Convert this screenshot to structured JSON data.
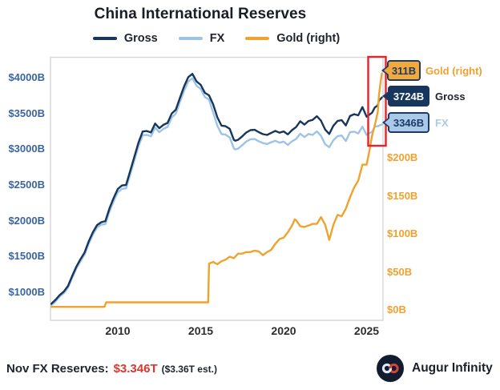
{
  "title": "China International Reserves",
  "legend": [
    {
      "label": "Gross",
      "color": "#17365d"
    },
    {
      "label": "FX",
      "color": "#9dc3e6"
    },
    {
      "label": "Gold (right)",
      "color": "#f0a22e"
    }
  ],
  "badges": {
    "gold": {
      "value": "311B",
      "label": "Gold (right)"
    },
    "gross": {
      "value": "3724B",
      "label": "Gross"
    },
    "fx": {
      "value": "3346B",
      "label": "FX"
    }
  },
  "footer": {
    "prefix": "Nov FX Reserves:",
    "value": "$3.346T",
    "estimate": "($3.36T est.)",
    "brand": "Augur Infinity"
  },
  "colors": {
    "gross": "#17365d",
    "fx": "#9dc3e6",
    "gold": "#f0a22e",
    "highlight_red": "#e1252b",
    "left_axis_text": "#3a64a0",
    "right_axis_text": "#f0a22e",
    "plot_border": "#d9d9d9",
    "footer_value_red": "#e0342c"
  },
  "chart_data": {
    "type": "line",
    "title": "China International Reserves",
    "grid": false,
    "legend_position": "top",
    "x_axis": {
      "min": 2005.9,
      "max": 2025.95,
      "ticks": [
        {
          "v": 2010,
          "label": "2010"
        },
        {
          "v": 2015,
          "label": "2015"
        },
        {
          "v": 2020,
          "label": "2020"
        },
        {
          "v": 2025,
          "label": "2025"
        }
      ]
    },
    "left_axis": {
      "unit": "USD billions",
      "ticks": [
        {
          "v": 4000,
          "label": "$4000B"
        },
        {
          "v": 3500,
          "label": "$3500B"
        },
        {
          "v": 3000,
          "label": "$3000B"
        },
        {
          "v": 2500,
          "label": "$2500B"
        },
        {
          "v": 2000,
          "label": "$2000B"
        },
        {
          "v": 1500,
          "label": "$1500B"
        },
        {
          "v": 1000,
          "label": "$1000B"
        }
      ]
    },
    "right_axis": {
      "unit": "USD billions",
      "ticks": [
        {
          "v": 200,
          "label": "$200B"
        },
        {
          "v": 150,
          "label": "$150B"
        },
        {
          "v": 100,
          "label": "$100B"
        },
        {
          "v": 50,
          "label": "$50B"
        },
        {
          "v": 0,
          "label": "$0B"
        }
      ]
    },
    "annotations": {
      "highlight_box": {
        "x_from": 2025.0,
        "x_to": 2026.05,
        "note": "red box highlighting latest surge"
      },
      "end_labels": [
        {
          "series": "Gold",
          "value_text": "311B"
        },
        {
          "series": "Gross",
          "value_text": "3724B"
        },
        {
          "series": "FX",
          "value_text": "3346B"
        }
      ]
    },
    "series": [
      {
        "name": "FX",
        "axis": "left",
        "color": "#9dc3e6",
        "points": [
          [
            2006.0,
            820
          ],
          [
            2006.25,
            875
          ],
          [
            2006.5,
            941
          ],
          [
            2006.75,
            988
          ],
          [
            2007.0,
            1066
          ],
          [
            2007.25,
            1202
          ],
          [
            2007.5,
            1333
          ],
          [
            2007.75,
            1434
          ],
          [
            2008.0,
            1528
          ],
          [
            2008.25,
            1682
          ],
          [
            2008.5,
            1809
          ],
          [
            2008.75,
            1906
          ],
          [
            2009.0,
            1946
          ],
          [
            2009.25,
            1954
          ],
          [
            2009.5,
            2132
          ],
          [
            2009.75,
            2273
          ],
          [
            2010.0,
            2399
          ],
          [
            2010.25,
            2447
          ],
          [
            2010.5,
            2454
          ],
          [
            2010.75,
            2648
          ],
          [
            2011.0,
            2847
          ],
          [
            2011.25,
            3045
          ],
          [
            2011.5,
            3197
          ],
          [
            2011.75,
            3202
          ],
          [
            2012.0,
            3181
          ],
          [
            2012.25,
            3305
          ],
          [
            2012.5,
            3240
          ],
          [
            2012.75,
            3285
          ],
          [
            2013.0,
            3312
          ],
          [
            2013.25,
            3443
          ],
          [
            2013.5,
            3497
          ],
          [
            2013.75,
            3663
          ],
          [
            2014.0,
            3821
          ],
          [
            2014.25,
            3948
          ],
          [
            2014.5,
            3993
          ],
          [
            2014.75,
            3888
          ],
          [
            2015.0,
            3843
          ],
          [
            2015.25,
            3730
          ],
          [
            2015.5,
            3694
          ],
          [
            2015.75,
            3514
          ],
          [
            2016.0,
            3330
          ],
          [
            2016.25,
            3213
          ],
          [
            2016.5,
            3205
          ],
          [
            2016.75,
            3166
          ],
          [
            2017.0,
            3011
          ],
          [
            2017.08,
            2998
          ],
          [
            2017.25,
            3009
          ],
          [
            2017.5,
            3057
          ],
          [
            2017.75,
            3109
          ],
          [
            2018.0,
            3140
          ],
          [
            2018.25,
            3143
          ],
          [
            2018.5,
            3112
          ],
          [
            2018.75,
            3087
          ],
          [
            2019.0,
            3073
          ],
          [
            2019.25,
            3099
          ],
          [
            2019.5,
            3119
          ],
          [
            2019.75,
            3092
          ],
          [
            2020.0,
            3108
          ],
          [
            2020.25,
            3061
          ],
          [
            2020.5,
            3112
          ],
          [
            2020.75,
            3143
          ],
          [
            2021.0,
            3217
          ],
          [
            2021.25,
            3170
          ],
          [
            2021.5,
            3214
          ],
          [
            2021.75,
            3201
          ],
          [
            2022.0,
            3250
          ],
          [
            2022.25,
            3188
          ],
          [
            2022.5,
            3071
          ],
          [
            2022.75,
            3029
          ],
          [
            2023.0,
            3128
          ],
          [
            2023.25,
            3184
          ],
          [
            2023.5,
            3193
          ],
          [
            2023.75,
            3115
          ],
          [
            2024.0,
            3238
          ],
          [
            2024.25,
            3246
          ],
          [
            2024.5,
            3222
          ],
          [
            2024.75,
            3316
          ],
          [
            2025.0,
            3202
          ],
          [
            2025.17,
            3227
          ],
          [
            2025.33,
            3241
          ],
          [
            2025.5,
            3317
          ],
          [
            2025.67,
            3322
          ],
          [
            2025.83,
            3339
          ],
          [
            2025.92,
            3346
          ]
        ]
      },
      {
        "name": "Gross",
        "axis": "left",
        "color": "#17365d",
        "points": [
          [
            2006.0,
            840
          ],
          [
            2006.25,
            896
          ],
          [
            2006.5,
            962
          ],
          [
            2006.75,
            1010
          ],
          [
            2007.0,
            1090
          ],
          [
            2007.25,
            1228
          ],
          [
            2007.5,
            1360
          ],
          [
            2007.75,
            1462
          ],
          [
            2008.0,
            1558
          ],
          [
            2008.25,
            1714
          ],
          [
            2008.5,
            1841
          ],
          [
            2008.75,
            1940
          ],
          [
            2009.0,
            1980
          ],
          [
            2009.25,
            1995
          ],
          [
            2009.5,
            2176
          ],
          [
            2009.75,
            2318
          ],
          [
            2010.0,
            2445
          ],
          [
            2010.25,
            2494
          ],
          [
            2010.5,
            2501
          ],
          [
            2010.75,
            2696
          ],
          [
            2011.0,
            2896
          ],
          [
            2011.25,
            3096
          ],
          [
            2011.5,
            3249
          ],
          [
            2011.75,
            3255
          ],
          [
            2012.0,
            3235
          ],
          [
            2012.25,
            3360
          ],
          [
            2012.5,
            3295
          ],
          [
            2012.75,
            3341
          ],
          [
            2013.0,
            3368
          ],
          [
            2013.25,
            3500
          ],
          [
            2013.5,
            3553
          ],
          [
            2013.75,
            3720
          ],
          [
            2014.0,
            3880
          ],
          [
            2014.25,
            4009
          ],
          [
            2014.5,
            4055
          ],
          [
            2014.75,
            3948
          ],
          [
            2015.0,
            3901
          ],
          [
            2015.25,
            3789
          ],
          [
            2015.5,
            3754
          ],
          [
            2015.75,
            3629
          ],
          [
            2016.0,
            3448
          ],
          [
            2016.25,
            3330
          ],
          [
            2016.5,
            3323
          ],
          [
            2016.75,
            3286
          ],
          [
            2017.0,
            3131
          ],
          [
            2017.08,
            3120
          ],
          [
            2017.25,
            3132
          ],
          [
            2017.5,
            3180
          ],
          [
            2017.75,
            3235
          ],
          [
            2018.0,
            3268
          ],
          [
            2018.25,
            3272
          ],
          [
            2018.5,
            3240
          ],
          [
            2018.75,
            3212
          ],
          [
            2019.0,
            3200
          ],
          [
            2019.25,
            3230
          ],
          [
            2019.5,
            3256
          ],
          [
            2019.75,
            3232
          ],
          [
            2020.0,
            3250
          ],
          [
            2020.25,
            3208
          ],
          [
            2020.5,
            3268
          ],
          [
            2020.75,
            3310
          ],
          [
            2021.0,
            3392
          ],
          [
            2021.25,
            3345
          ],
          [
            2021.5,
            3395
          ],
          [
            2021.75,
            3411
          ],
          [
            2022.0,
            3463
          ],
          [
            2022.25,
            3400
          ],
          [
            2022.5,
            3276
          ],
          [
            2022.75,
            3214
          ],
          [
            2023.0,
            3330
          ],
          [
            2023.25,
            3395
          ],
          [
            2023.5,
            3408
          ],
          [
            2023.75,
            3334
          ],
          [
            2024.0,
            3465
          ],
          [
            2024.25,
            3490
          ],
          [
            2024.5,
            3475
          ],
          [
            2024.75,
            3590
          ],
          [
            2025.0,
            3456
          ],
          [
            2025.17,
            3485
          ],
          [
            2025.33,
            3511
          ],
          [
            2025.5,
            3586
          ],
          [
            2025.67,
            3611
          ],
          [
            2025.75,
            3686
          ],
          [
            2025.83,
            3700
          ],
          [
            2025.92,
            3724
          ]
        ]
      },
      {
        "name": "Gold",
        "axis": "right",
        "color": "#f0a22e",
        "points": [
          [
            2006.0,
            4
          ],
          [
            2009.2,
            4
          ],
          [
            2009.3,
            10
          ],
          [
            2015.45,
            10
          ],
          [
            2015.5,
            61
          ],
          [
            2015.75,
            63
          ],
          [
            2016.0,
            60
          ],
          [
            2016.25,
            64
          ],
          [
            2016.5,
            66
          ],
          [
            2016.75,
            70
          ],
          [
            2017.0,
            68
          ],
          [
            2017.25,
            74
          ],
          [
            2017.5,
            74
          ],
          [
            2017.75,
            76
          ],
          [
            2018.0,
            76
          ],
          [
            2018.25,
            78
          ],
          [
            2018.5,
            77
          ],
          [
            2018.75,
            72
          ],
          [
            2019.0,
            76
          ],
          [
            2019.25,
            79
          ],
          [
            2019.5,
            87
          ],
          [
            2019.75,
            93
          ],
          [
            2020.0,
            95
          ],
          [
            2020.25,
            102
          ],
          [
            2020.5,
            111
          ],
          [
            2020.67,
            119
          ],
          [
            2020.75,
            118
          ],
          [
            2021.0,
            110
          ],
          [
            2021.25,
            109
          ],
          [
            2021.5,
            111
          ],
          [
            2021.75,
            113
          ],
          [
            2022.0,
            113
          ],
          [
            2022.25,
            122
          ],
          [
            2022.5,
            112
          ],
          [
            2022.75,
            92
          ],
          [
            2023.0,
            112
          ],
          [
            2023.25,
            125
          ],
          [
            2023.5,
            123
          ],
          [
            2023.75,
            133
          ],
          [
            2024.0,
            148
          ],
          [
            2024.25,
            161
          ],
          [
            2024.5,
            170
          ],
          [
            2024.75,
            191
          ],
          [
            2025.0,
            191
          ],
          [
            2025.17,
            209
          ],
          [
            2025.33,
            229
          ],
          [
            2025.5,
            243
          ],
          [
            2025.67,
            260
          ],
          [
            2025.75,
            283
          ],
          [
            2025.83,
            297
          ],
          [
            2025.92,
            311
          ]
        ]
      }
    ]
  }
}
